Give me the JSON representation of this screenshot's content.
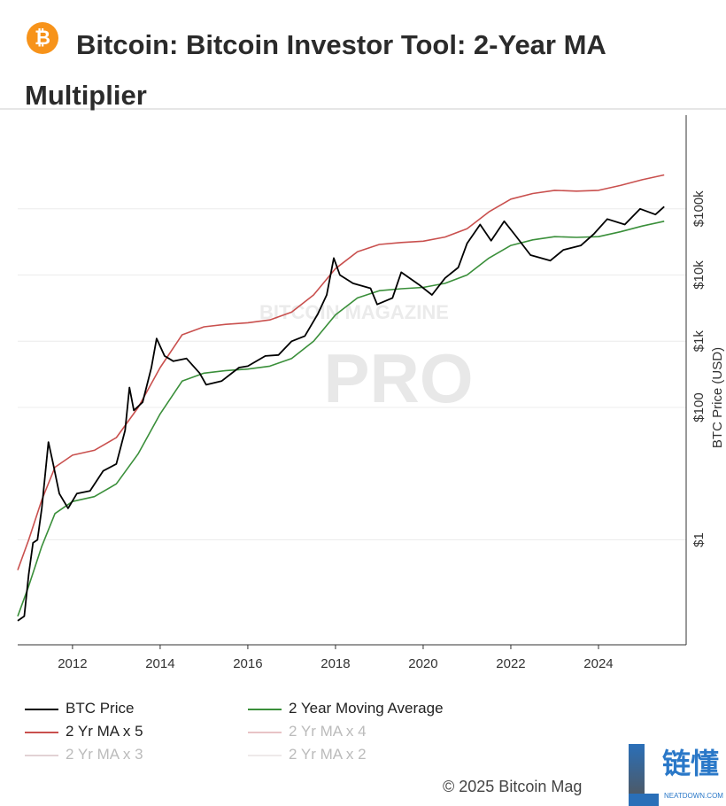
{
  "header": {
    "title": "Bitcoin: Bitcoin Investor Tool: 2-Year MA Multiplier",
    "icon": "bitcoin-icon",
    "icon_glyph": "₿"
  },
  "chart_data": {
    "type": "line",
    "title": "Bitcoin: Bitcoin Investor Tool: 2-Year MA Multiplier",
    "xlabel": "",
    "ylabel": "BTC Price (USD)",
    "yscale": "log",
    "xlim": [
      2010.75,
      2026.0
    ],
    "ylim": [
      0.026,
      2600000
    ],
    "x_ticks": [
      2012,
      2014,
      2016,
      2018,
      2020,
      2022,
      2024
    ],
    "x_tick_labels": [
      "2012",
      "2014",
      "2016",
      "2018",
      "2020",
      "2022",
      "2024"
    ],
    "y_ticks": [
      1,
      100,
      1000,
      10000,
      100000
    ],
    "y_tick_labels": [
      "$1",
      "$100",
      "$1k",
      "$10k",
      "$100k"
    ],
    "y_axis_side": "right",
    "grid": "horizontal",
    "legend_placement": "bottom",
    "series": [
      {
        "name": "BTC Price",
        "color": "#000000",
        "x": [
          2010.75,
          2010.9,
          2011.0,
          2011.1,
          2011.2,
          2011.3,
          2011.45,
          2011.55,
          2011.7,
          2011.9,
          2012.1,
          2012.4,
          2012.7,
          2013.0,
          2013.2,
          2013.3,
          2013.4,
          2013.6,
          2013.8,
          2013.92,
          2014.1,
          2014.3,
          2014.6,
          2014.9,
          2015.05,
          2015.4,
          2015.8,
          2016.0,
          2016.4,
          2016.7,
          2017.0,
          2017.3,
          2017.6,
          2017.8,
          2017.96,
          2018.1,
          2018.4,
          2018.8,
          2018.95,
          2019.3,
          2019.5,
          2019.9,
          2020.2,
          2020.5,
          2020.8,
          2021.0,
          2021.3,
          2021.55,
          2021.85,
          2022.1,
          2022.45,
          2022.9,
          2023.2,
          2023.6,
          2023.9,
          2024.2,
          2024.6,
          2024.95,
          2025.3,
          2025.5
        ],
        "values": [
          0.06,
          0.07,
          0.3,
          0.9,
          1,
          3,
          30,
          15,
          5,
          3,
          5,
          5.5,
          11,
          14,
          45,
          200,
          90,
          120,
          400,
          1100,
          600,
          500,
          550,
          330,
          220,
          250,
          400,
          420,
          600,
          620,
          1000,
          1200,
          2600,
          5000,
          18000,
          10000,
          7500,
          6300,
          3600,
          4500,
          11000,
          7200,
          5000,
          9000,
          13000,
          30000,
          58000,
          33000,
          65000,
          40000,
          20000,
          16500,
          24000,
          28000,
          42000,
          70000,
          58000,
          100000,
          82000,
          108000
        ]
      },
      {
        "name": "2 Year Moving Average",
        "color": "#3a8f3a",
        "x": [
          2010.75,
          2011.0,
          2011.3,
          2011.6,
          2012.0,
          2012.5,
          2013.0,
          2013.5,
          2014.0,
          2014.5,
          2015.0,
          2015.5,
          2016.0,
          2016.5,
          2017.0,
          2017.5,
          2018.0,
          2018.5,
          2019.0,
          2019.5,
          2020.0,
          2020.5,
          2021.0,
          2021.5,
          2022.0,
          2022.5,
          2023.0,
          2023.5,
          2024.0,
          2024.5,
          2025.0,
          2025.5
        ],
        "values": [
          0.07,
          0.2,
          0.8,
          2.5,
          3.8,
          4.5,
          7,
          20,
          80,
          250,
          330,
          360,
          380,
          420,
          550,
          1000,
          2500,
          4500,
          5800,
          6200,
          6500,
          7500,
          10000,
          18000,
          28000,
          34000,
          38000,
          37000,
          38000,
          45000,
          55000,
          65000
        ]
      },
      {
        "name": "2 Yr MA x 5",
        "color": "#c9504e",
        "multiplier_of": "2 Year Moving Average",
        "multiplier": 5
      },
      {
        "name": "2 Yr MA x 4",
        "color": "#e8c3c6",
        "hidden": true
      },
      {
        "name": "2 Yr MA x 3",
        "color": "#e2d2d4",
        "hidden": true
      },
      {
        "name": "2 Yr MA x 2",
        "color": "#eeeaea",
        "hidden": true
      }
    ],
    "watermark": "BITCOIN MAGAZINE PRO"
  },
  "copyright": "© 2025 Bitcoin Mag",
  "site_watermark": {
    "cn": "链懂",
    "en": "NEATDOWN.COM"
  }
}
